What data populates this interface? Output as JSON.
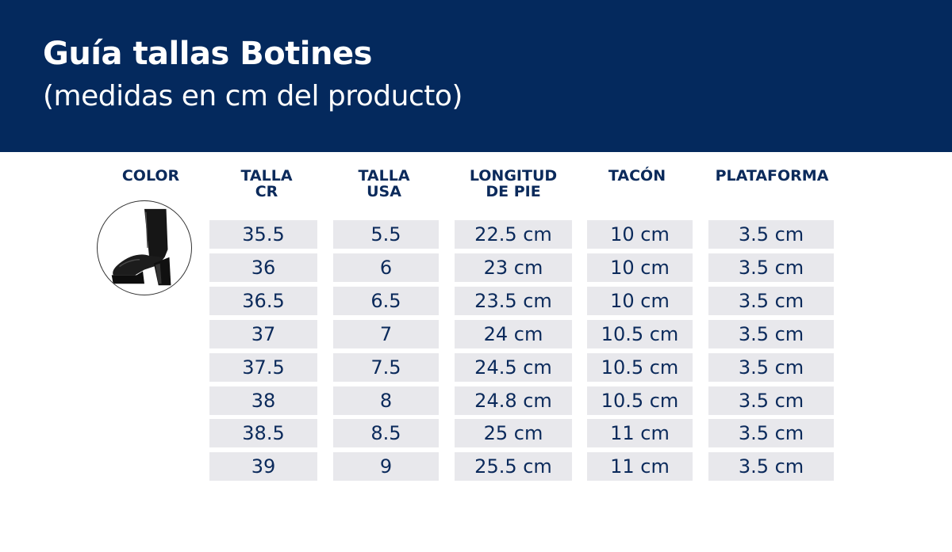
{
  "header": {
    "title": "Guía tallas Botines",
    "subtitle": "(medidas en cm del producto)"
  },
  "columns": [
    {
      "key": "color",
      "label": "COLOR"
    },
    {
      "key": "talla_cr",
      "label": "TALLA\nCR"
    },
    {
      "key": "talla_usa",
      "label": "TALLA\nUSA"
    },
    {
      "key": "longitud",
      "label": "LONGITUD\nDE PIE"
    },
    {
      "key": "tacon",
      "label": "TACÓN"
    },
    {
      "key": "plataforma",
      "label": "PLATAFORMA"
    }
  ],
  "product": {
    "icon": "black-platform-ankle-boot"
  },
  "rows": [
    {
      "talla_cr": "35.5",
      "talla_usa": "5.5",
      "longitud": "22.5 cm",
      "tacon": "10 cm",
      "plataforma": "3.5 cm"
    },
    {
      "talla_cr": "36",
      "talla_usa": "6",
      "longitud": "23 cm",
      "tacon": "10 cm",
      "plataforma": "3.5 cm"
    },
    {
      "talla_cr": "36.5",
      "talla_usa": "6.5",
      "longitud": "23.5 cm",
      "tacon": "10 cm",
      "plataforma": "3.5 cm"
    },
    {
      "talla_cr": "37",
      "talla_usa": "7",
      "longitud": "24 cm",
      "tacon": "10.5 cm",
      "plataforma": "3.5 cm"
    },
    {
      "talla_cr": "37.5",
      "talla_usa": "7.5",
      "longitud": "24.5 cm",
      "tacon": "10.5 cm",
      "plataforma": "3.5 cm"
    },
    {
      "talla_cr": "38",
      "talla_usa": "8",
      "longitud": "24.8 cm",
      "tacon": "10.5 cm",
      "plataforma": "3.5 cm"
    },
    {
      "talla_cr": "38.5",
      "talla_usa": "8.5",
      "longitud": "25 cm",
      "tacon": "11 cm",
      "plataforma": "3.5 cm"
    },
    {
      "talla_cr": "39",
      "talla_usa": "9",
      "longitud": "25.5 cm",
      "tacon": "11 cm",
      "plataforma": "3.5 cm"
    }
  ],
  "colors": {
    "header_bg": "#04295d",
    "cell_bg": "#e8e8ec",
    "text": "#0b2a5b"
  }
}
